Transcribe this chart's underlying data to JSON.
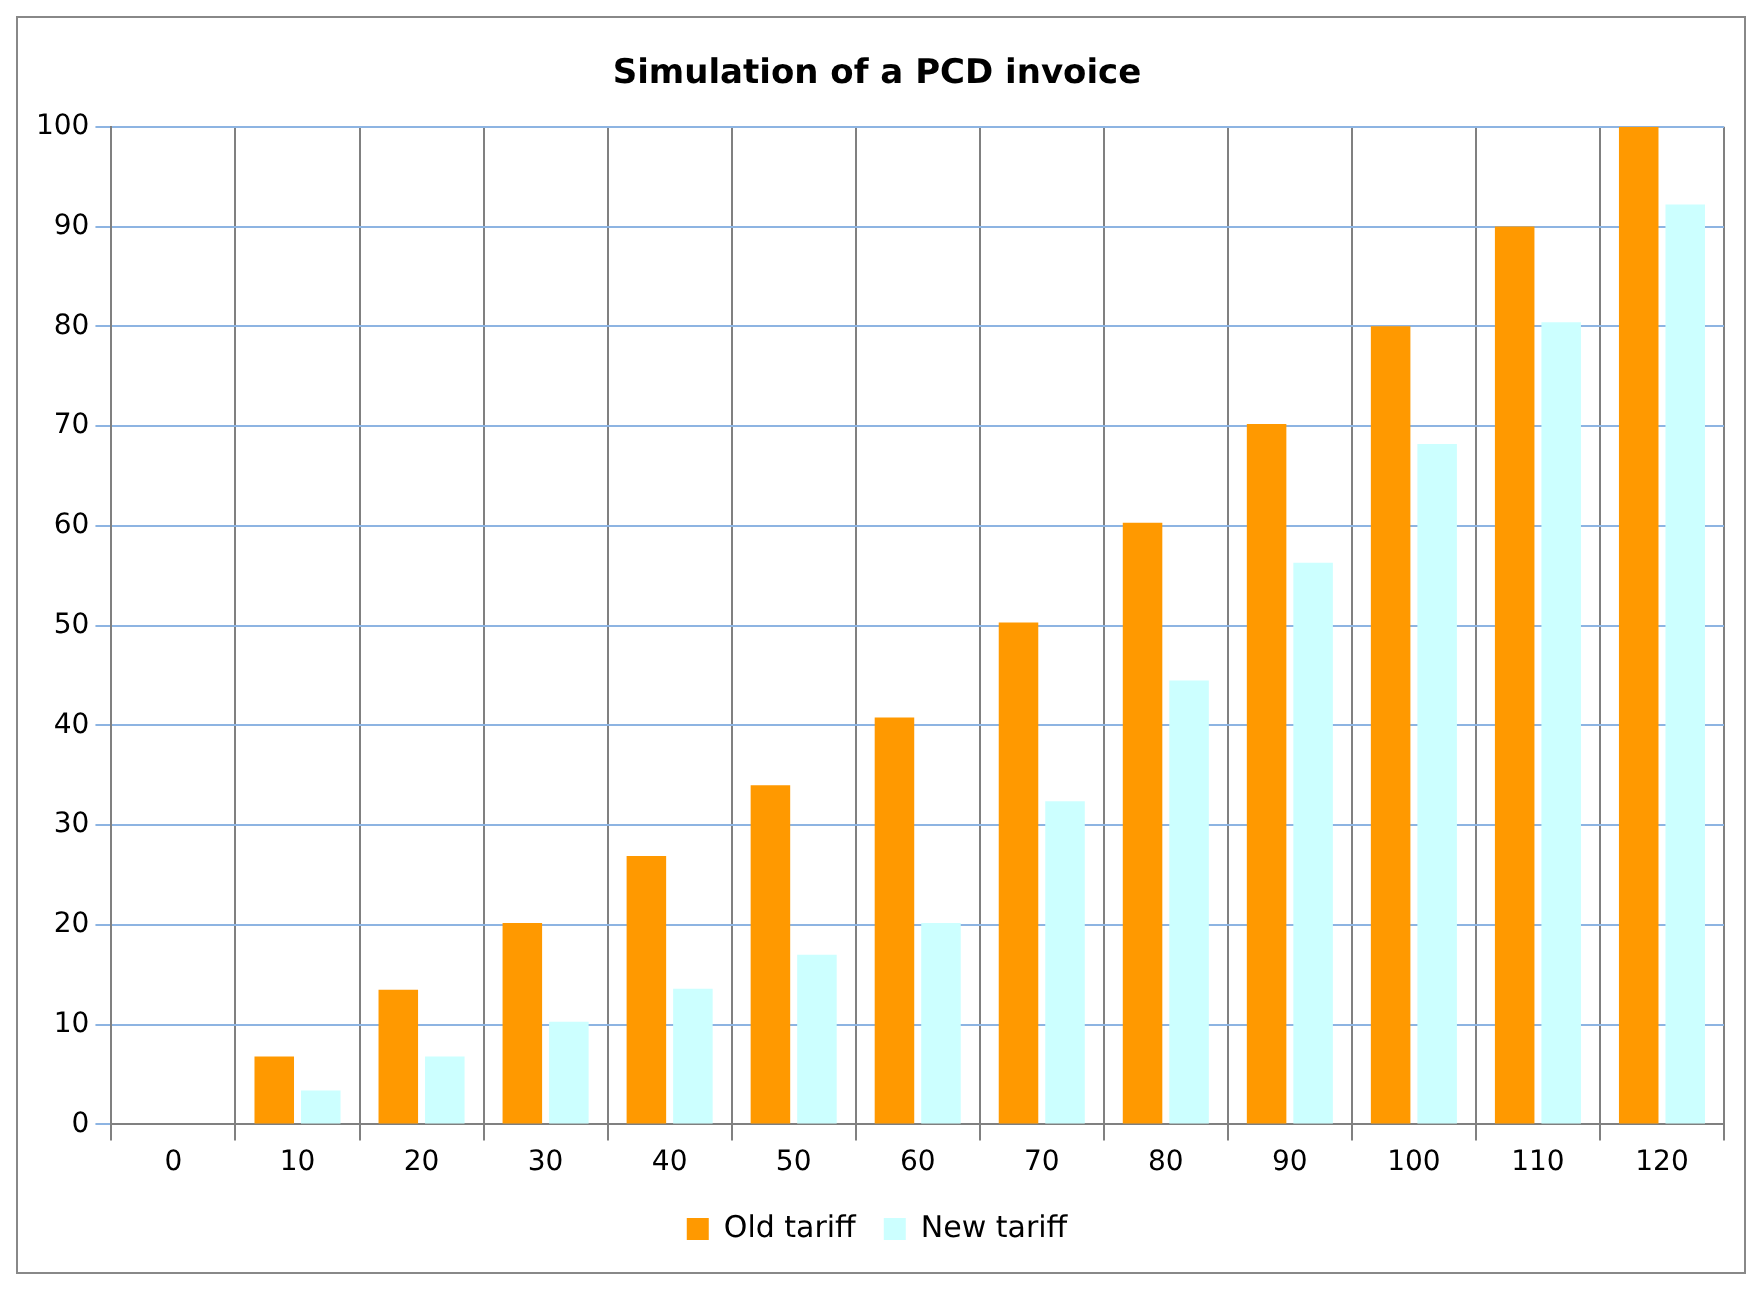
{
  "chart_data": {
    "type": "bar",
    "title": "Simulation of a PCD invoice",
    "categories": [
      "0",
      "10",
      "20",
      "30",
      "40",
      "50",
      "60",
      "70",
      "80",
      "90",
      "100",
      "110",
      "120"
    ],
    "series": [
      {
        "name": "Old tariff",
        "color": "#ff9900",
        "values": [
          0,
          6.8,
          13.5,
          20.2,
          26.9,
          34,
          40.8,
          50.3,
          60.3,
          70.2,
          80,
          90,
          100
        ]
      },
      {
        "name": "New tariff",
        "color": "#ccffff",
        "values": [
          0,
          3.4,
          6.8,
          10.3,
          13.6,
          17,
          20.2,
          32.4,
          44.5,
          56.3,
          68.2,
          80.4,
          92.2
        ]
      }
    ],
    "ylim": [
      0,
      100
    ],
    "yticks": [
      0,
      10,
      20,
      30,
      40,
      50,
      60,
      70,
      80,
      90,
      100
    ],
    "grid": true,
    "legend": "bottom"
  }
}
